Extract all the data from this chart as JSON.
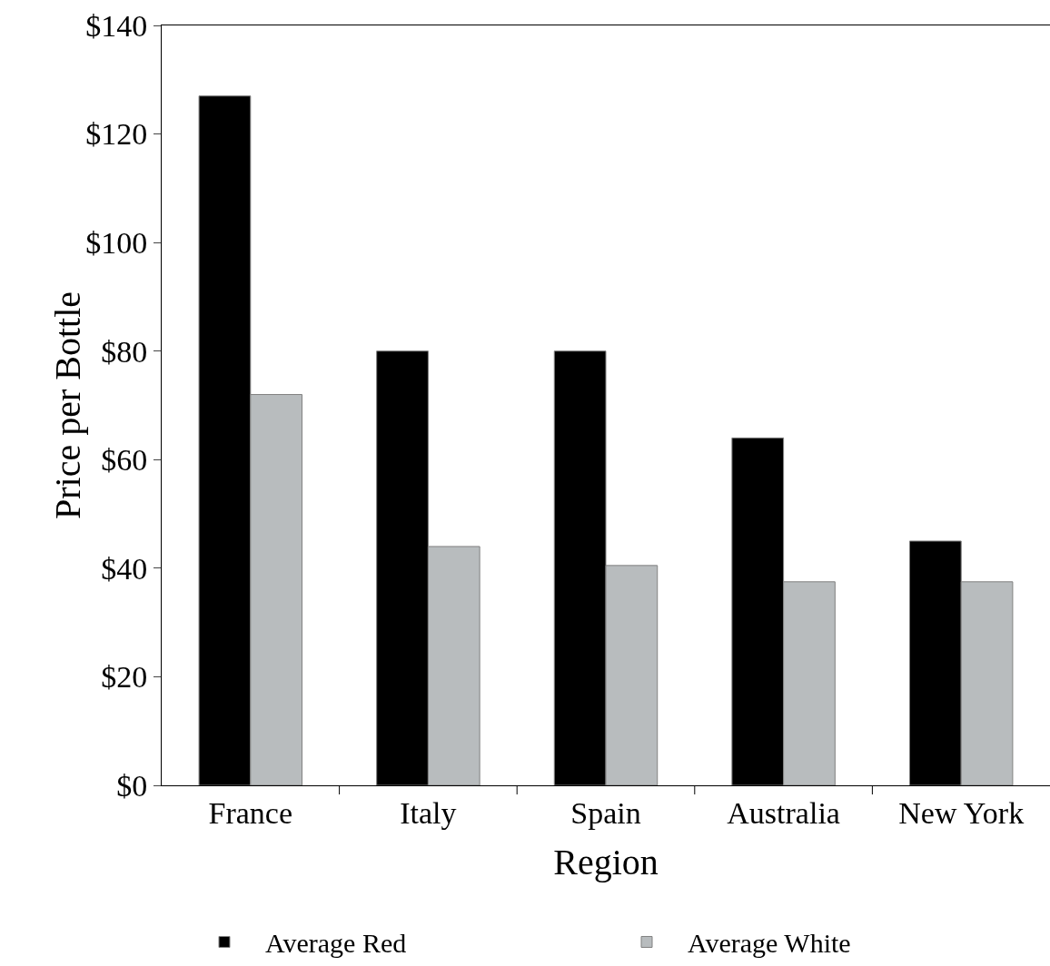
{
  "chart_data": {
    "type": "bar",
    "xlabel": "Region",
    "ylabel": "Price per Bottle",
    "categories": [
      "France",
      "Italy",
      "Spain",
      "Australia",
      "New York"
    ],
    "series": [
      {
        "name": "Average Red",
        "color": "#000000",
        "values": [
          127,
          80,
          80,
          64,
          45
        ]
      },
      {
        "name": "Average White",
        "color": "#b8bcbe",
        "values": [
          72,
          44,
          40.5,
          37.5,
          37.5
        ]
      }
    ],
    "ylim": [
      0,
      140
    ],
    "yticks": [
      {
        "value": 0,
        "label": "$0"
      },
      {
        "value": 20,
        "label": "$20"
      },
      {
        "value": 40,
        "label": "$40"
      },
      {
        "value": 60,
        "label": "$60"
      },
      {
        "value": 80,
        "label": "$80"
      },
      {
        "value": 100,
        "label": "$100"
      },
      {
        "value": 120,
        "label": "$120"
      },
      {
        "value": 140,
        "label": "$140"
      }
    ],
    "grid": false,
    "legend": "bottom"
  }
}
